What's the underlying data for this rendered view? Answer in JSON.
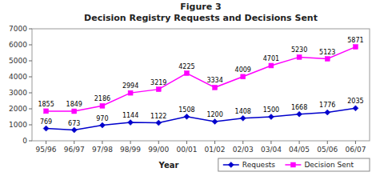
{
  "chart_data": {
    "type": "line",
    "title": "Figure 3",
    "subtitle": "Decision Registry Requests and Decisions Sent",
    "xlabel": "Year",
    "categories": [
      "95/96",
      "96/97",
      "97/98",
      "98/99",
      "99/00",
      "00/01",
      "01/02",
      "02/03",
      "03/04",
      "04/05",
      "05/06",
      "06/07"
    ],
    "series": [
      {
        "name": "Requests",
        "color": "#0000cc",
        "marker": "diamond",
        "line_style": "solid",
        "values": [
          769,
          673,
          970,
          1144,
          1122,
          1508,
          1200,
          1408,
          1500,
          1668,
          1776,
          2035
        ]
      },
      {
        "name": "Decision Sent",
        "color": "#ff00ff",
        "marker": "square",
        "line_style": "solid",
        "values": [
          1855,
          1849,
          2186,
          2994,
          3219,
          4225,
          3334,
          4009,
          4701,
          5230,
          5123,
          5871
        ]
      }
    ],
    "ylim": [
      0,
      7000
    ],
    "yticks": [
      0,
      1000,
      2000,
      3000,
      4000,
      5000,
      6000,
      7000
    ],
    "data_labels": true,
    "legend": "lower right",
    "grid": false
  }
}
